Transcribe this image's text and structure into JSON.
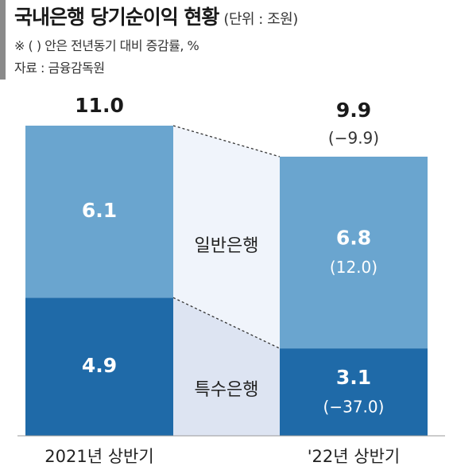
{
  "header": {
    "title": "국내은행 당기순이익 현황",
    "unit": "(단위 : 조원)",
    "note": "※ (  ) 안은 전년동기 대비 증감률, %",
    "source": "자료 : 금융감독원"
  },
  "chart_data": {
    "type": "bar",
    "stacked": true,
    "categories": [
      "2021년 상반기",
      "'22년 상반기"
    ],
    "series": [
      {
        "name": "특수은행",
        "values": [
          4.9,
          3.1
        ],
        "changes": [
          "",
          "(−37.0)"
        ],
        "color": "#1f6aa8"
      },
      {
        "name": "일반은행",
        "values": [
          6.1,
          6.8
        ],
        "changes": [
          "",
          "(12.0)"
        ],
        "color": "#6aa5cf"
      }
    ],
    "totals": [
      11.0,
      9.9
    ],
    "total_labels": [
      "11.0",
      "9.9"
    ],
    "total_changes": [
      "",
      "(−9.9)"
    ],
    "value_labels": [
      [
        "4.9",
        "3.1"
      ],
      [
        "6.1",
        "6.8"
      ]
    ],
    "ylim": [
      0,
      11.0
    ],
    "grid": false,
    "colors": {
      "connector_upper": "#f0f4fb",
      "connector_lower": "#dde4f2",
      "baseline": "#999999"
    }
  }
}
